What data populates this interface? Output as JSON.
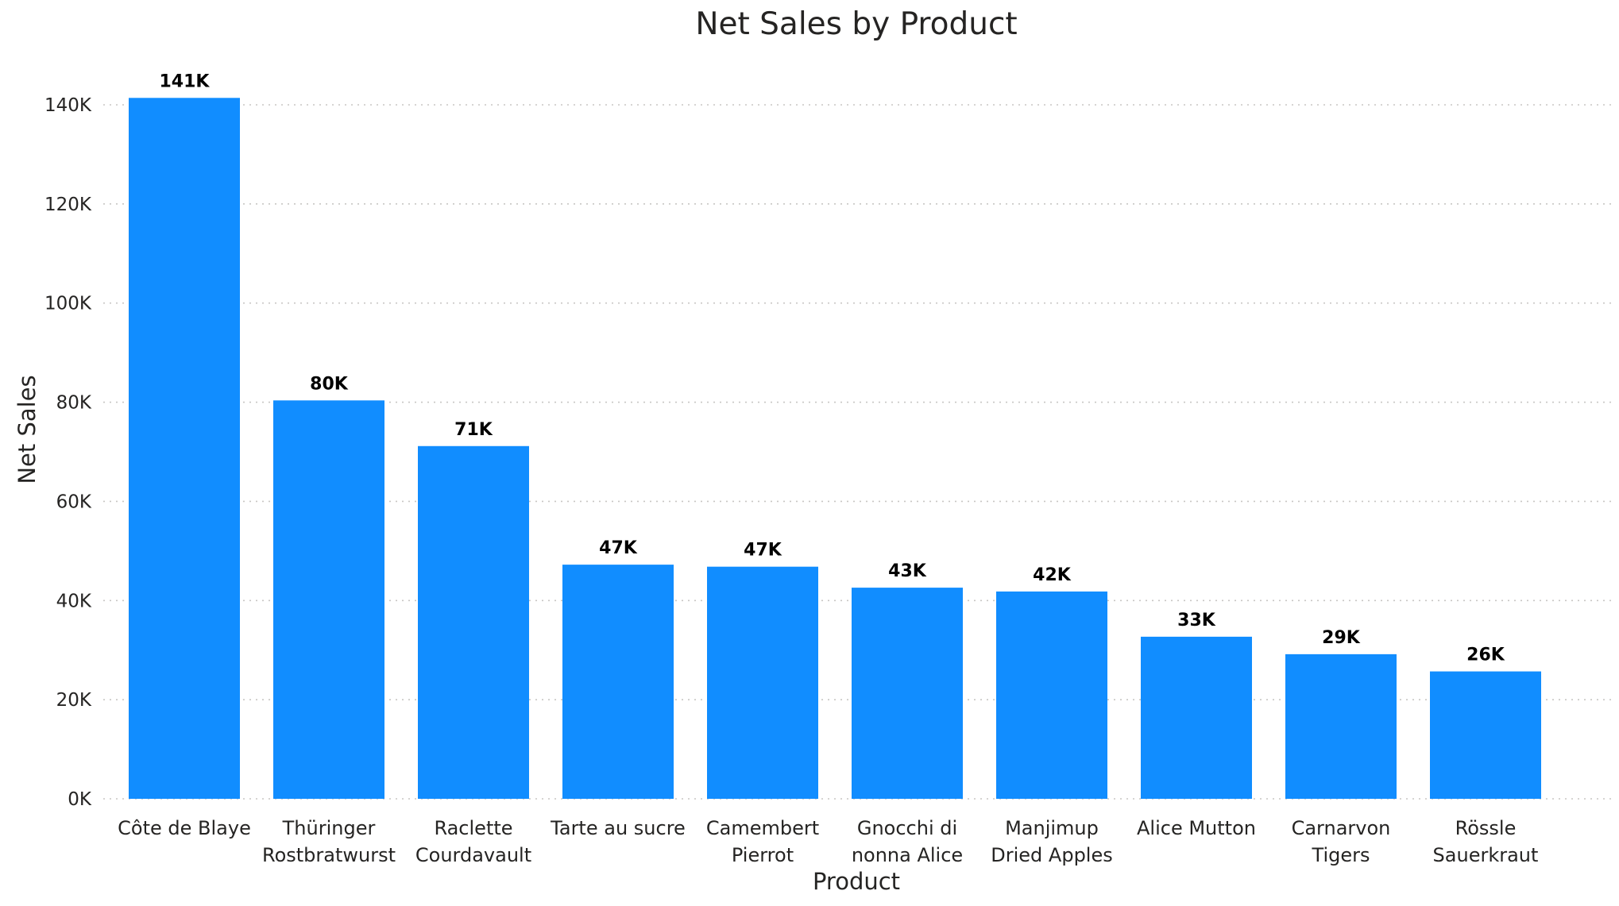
{
  "chart_data": {
    "type": "bar",
    "title": "Net Sales by Product",
    "xlabel": "Product",
    "ylabel": "Net Sales",
    "categories": [
      "Côte de Blaye",
      "Thüringer Rostbratwurst",
      "Raclette Courdavault",
      "Tarte au sucre",
      "Camembert Pierrot",
      "Gnocchi di nonna Alice",
      "Manjimup Dried Apples",
      "Alice Mutton",
      "Carnarvon Tigers",
      "Rössle Sauerkraut"
    ],
    "category_label_lines": [
      [
        "Côte de Blaye"
      ],
      [
        "Thüringer",
        "Rostbratwurst"
      ],
      [
        "Raclette",
        "Courdavault"
      ],
      [
        "Tarte au sucre"
      ],
      [
        "Camembert",
        "Pierrot"
      ],
      [
        "Gnocchi di",
        "nonna Alice"
      ],
      [
        "Manjimup",
        "Dried Apples"
      ],
      [
        "Alice Mutton"
      ],
      [
        "Carnarvon",
        "Tigers"
      ],
      [
        "Rössle",
        "Sauerkraut"
      ]
    ],
    "values": [
      141396,
      80368,
      71156,
      47235,
      46825,
      42593,
      41820,
      32698,
      29172,
      25697
    ],
    "data_labels": [
      "141K",
      "80K",
      "71K",
      "47K",
      "47K",
      "43K",
      "42K",
      "33K",
      "29K",
      "26K"
    ],
    "ylim": [
      0,
      140000
    ],
    "yticks": [
      0,
      20000,
      40000,
      60000,
      80000,
      100000,
      120000,
      140000
    ],
    "ytick_labels": [
      "0K",
      "20K",
      "40K",
      "60K",
      "80K",
      "100K",
      "120K",
      "140K"
    ],
    "grid": true,
    "legend": "none",
    "colors": {
      "bar": "#118DFF",
      "text": "#252423",
      "grid": "#C8C6C4"
    }
  }
}
